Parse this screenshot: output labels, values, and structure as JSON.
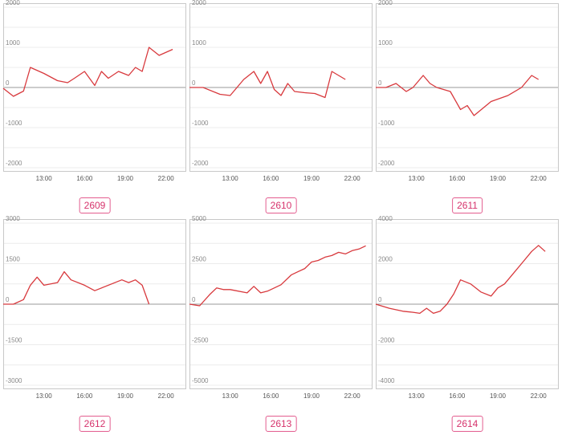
{
  "chart_data": [
    {
      "type": "line",
      "label": "2609",
      "x_ticks": [
        "13:00",
        "16:00",
        "19:00",
        "22:00"
      ],
      "y_ticks": [
        "2000",
        "1000",
        "0",
        "-1000",
        "-2000"
      ],
      "ylim": [
        -2000,
        2000
      ],
      "x": [
        "10:00",
        "10:45",
        "11:30",
        "12:00",
        "13:00",
        "14:00",
        "14:45",
        "15:15",
        "16:00",
        "16:45",
        "17:15",
        "17:45",
        "18:30",
        "19:15",
        "19:45",
        "20:15",
        "20:45",
        "21:30",
        "22:30"
      ],
      "values": [
        -20,
        -220,
        -90,
        500,
        350,
        170,
        120,
        230,
        400,
        50,
        400,
        230,
        400,
        300,
        500,
        400,
        1000,
        800,
        950
      ]
    },
    {
      "type": "line",
      "label": "2610",
      "x_ticks": [
        "13:00",
        "16:00",
        "19:00",
        "22:00"
      ],
      "y_ticks": [
        "2000",
        "1000",
        "0",
        "-1000",
        "-2000"
      ],
      "ylim": [
        -2000,
        2000
      ],
      "x": [
        "10:00",
        "11:00",
        "12:15",
        "13:00",
        "14:00",
        "14:45",
        "15:15",
        "15:45",
        "16:15",
        "16:45",
        "17:15",
        "17:45",
        "18:30",
        "19:15",
        "20:00",
        "20:30",
        "21:30"
      ],
      "values": [
        0,
        0,
        -170,
        -200,
        200,
        400,
        100,
        400,
        -50,
        -200,
        100,
        -100,
        -130,
        -150,
        -250,
        400,
        200
      ]
    },
    {
      "type": "line",
      "label": "2611",
      "x_ticks": [
        "13:00",
        "16:00",
        "19:00",
        "22:00"
      ],
      "y_ticks": [
        "2000",
        "1000",
        "0",
        "-1000",
        "-2000"
      ],
      "ylim": [
        -2000,
        2000
      ],
      "x": [
        "10:00",
        "10:45",
        "11:30",
        "12:15",
        "12:45",
        "13:30",
        "14:00",
        "14:30",
        "15:30",
        "16:15",
        "16:45",
        "17:15",
        "18:30",
        "19:45",
        "20:45",
        "21:30",
        "22:00"
      ],
      "values": [
        0,
        0,
        100,
        -100,
        0,
        300,
        100,
        0,
        -100,
        -550,
        -450,
        -700,
        -350,
        -200,
        0,
        300,
        200
      ]
    },
    {
      "type": "line",
      "label": "2612",
      "x_ticks": [
        "13:00",
        "16:00",
        "19:00",
        "22:00"
      ],
      "y_ticks": [
        "3000",
        "1500",
        "0",
        "-1500",
        "-3000"
      ],
      "ylim": [
        -3000,
        3000
      ],
      "x": [
        "10:00",
        "10:45",
        "11:30",
        "12:00",
        "12:30",
        "13:00",
        "14:00",
        "14:30",
        "15:00",
        "16:00",
        "16:45",
        "18:45",
        "19:15",
        "19:45",
        "20:15",
        "20:45"
      ],
      "values": [
        0,
        0,
        170,
        700,
        1000,
        700,
        800,
        1200,
        900,
        700,
        500,
        900,
        800,
        900,
        700,
        0
      ]
    },
    {
      "type": "line",
      "label": "2613",
      "x_ticks": [
        "13:00",
        "16:00",
        "19:00",
        "22:00"
      ],
      "y_ticks": [
        "5000",
        "2500",
        "0",
        "-2500",
        "-5000"
      ],
      "ylim": [
        -5000,
        5000
      ],
      "x": [
        "10:00",
        "10:45",
        "11:30",
        "12:00",
        "12:30",
        "13:00",
        "14:15",
        "14:45",
        "15:15",
        "15:45",
        "16:15",
        "16:45",
        "17:30",
        "18:00",
        "18:30",
        "19:00",
        "19:30",
        "20:00",
        "20:30",
        "21:00",
        "21:30",
        "22:00",
        "22:30",
        "23:00"
      ],
      "values": [
        0,
        -100,
        600,
        1000,
        900,
        900,
        700,
        1100,
        700,
        800,
        1000,
        1200,
        1800,
        2000,
        2200,
        2600,
        2700,
        2900,
        3000,
        3200,
        3100,
        3300,
        3400,
        3600
      ]
    },
    {
      "type": "line",
      "label": "2614",
      "x_ticks": [
        "13:00",
        "16:00",
        "19:00",
        "22:00"
      ],
      "y_ticks": [
        "4000",
        "2000",
        "0",
        "-2000",
        "-4000"
      ],
      "ylim": [
        -4000,
        4000
      ],
      "x": [
        "10:00",
        "11:00",
        "12:00",
        "12:45",
        "13:15",
        "13:45",
        "14:15",
        "14:45",
        "15:15",
        "15:45",
        "16:15",
        "17:00",
        "17:45",
        "18:30",
        "19:00",
        "19:30",
        "20:00",
        "20:45",
        "21:30",
        "22:00",
        "22:30"
      ],
      "values": [
        0,
        -200,
        -350,
        -400,
        -450,
        -200,
        -450,
        -350,
        0,
        500,
        1200,
        1000,
        600,
        400,
        800,
        1000,
        1400,
        2000,
        2600,
        2900,
        2600
      ]
    }
  ]
}
